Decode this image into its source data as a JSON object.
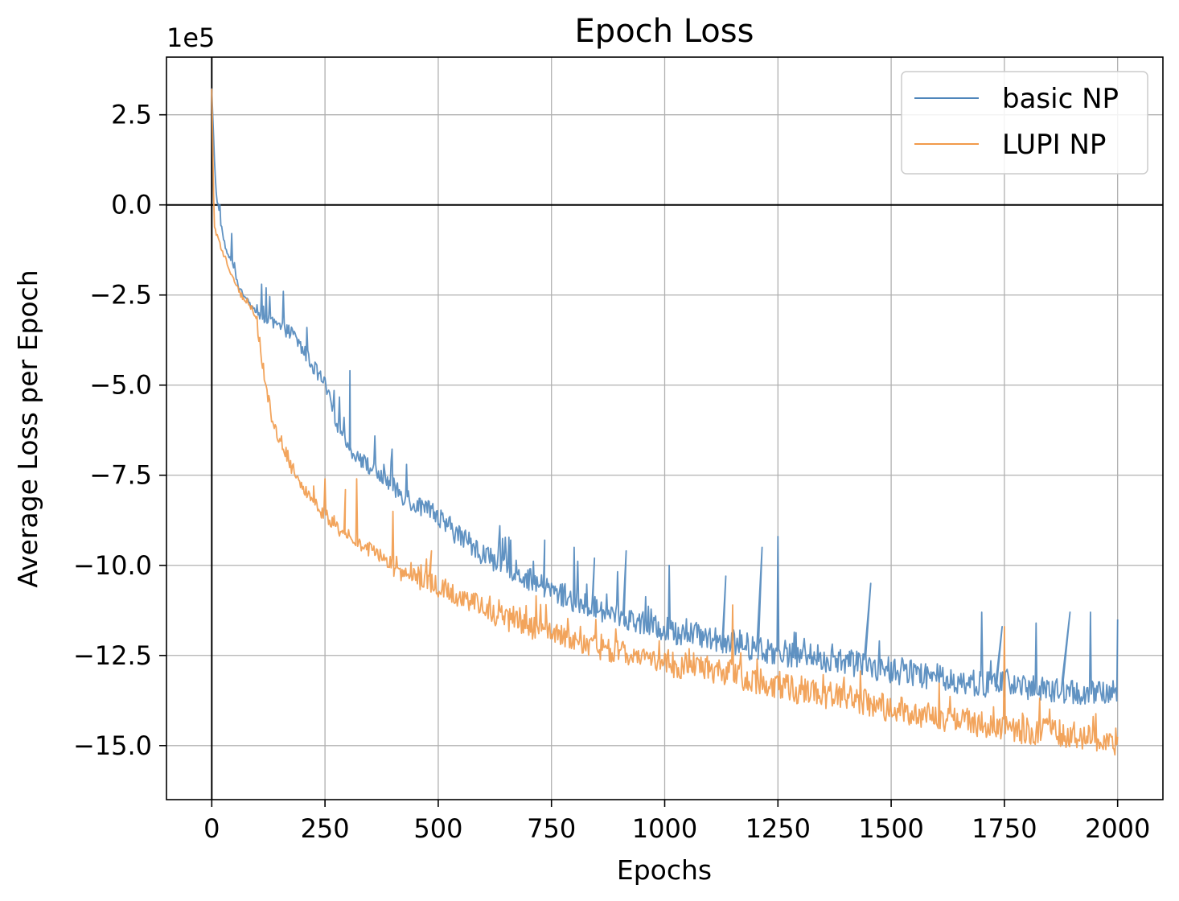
{
  "chart_data": {
    "type": "line",
    "title": "Epoch Loss",
    "xlabel": "Epochs",
    "ylabel": "Average Loss per Epoch",
    "y_offset_label": "1e5",
    "xlim": [
      -100,
      2100
    ],
    "ylim": [
      -16.5,
      4.1
    ],
    "x_ticks": [
      0,
      250,
      500,
      750,
      1000,
      1250,
      1500,
      1750,
      2000
    ],
    "x_tick_labels": [
      "0",
      "250",
      "500",
      "750",
      "1000",
      "1250",
      "1500",
      "1750",
      "2000"
    ],
    "y_ticks": [
      2.5,
      0.0,
      -2.5,
      -5.0,
      -7.5,
      -10.0,
      -12.5,
      -15.0
    ],
    "y_tick_labels": [
      "2.5",
      "0.0",
      "−2.5",
      "−5.0",
      "−7.5",
      "−10.0",
      "−12.5",
      "−15.0"
    ],
    "grid": true,
    "reference_lines": {
      "x": 0,
      "y": 0
    },
    "legend_position": "top-right",
    "series": [
      {
        "name": "basic NP",
        "color": "#4f86bb",
        "x": [
          0,
          5,
          10,
          20,
          30,
          40,
          50,
          60,
          80,
          100,
          120,
          150,
          180,
          200,
          225,
          250,
          275,
          300,
          350,
          400,
          450,
          500,
          550,
          600,
          650,
          700,
          750,
          800,
          850,
          900,
          950,
          1000,
          1050,
          1100,
          1150,
          1200,
          1250,
          1300,
          1350,
          1400,
          1450,
          1500,
          1550,
          1600,
          1650,
          1700,
          1750,
          1800,
          1850,
          1900,
          1950,
          2000
        ],
        "values": [
          3.2,
          1.5,
          0.3,
          -0.5,
          -1.2,
          -1.5,
          -1.8,
          -2.3,
          -2.7,
          -3.0,
          -3.2,
          -3.4,
          -3.6,
          -4.0,
          -4.5,
          -5.0,
          -6.0,
          -6.7,
          -7.3,
          -7.8,
          -8.3,
          -8.7,
          -9.2,
          -9.7,
          -10.0,
          -10.4,
          -10.7,
          -11.0,
          -11.2,
          -11.4,
          -11.6,
          -11.8,
          -11.9,
          -12.0,
          -12.1,
          -12.3,
          -12.4,
          -12.5,
          -12.6,
          -12.7,
          -12.8,
          -12.9,
          -13.0,
          -13.1,
          -13.2,
          -13.3,
          -13.3,
          -13.4,
          -13.5,
          -13.5,
          -13.6,
          -13.5
        ],
        "spikes": [
          [
            110,
            -2.2
          ],
          [
            120,
            -2.3
          ],
          [
            210,
            -3.4
          ],
          [
            305,
            -4.6
          ],
          [
            380,
            -7.2
          ],
          [
            430,
            -7.2
          ],
          [
            660,
            -9.3
          ],
          [
            735,
            -9.3
          ],
          [
            800,
            -9.5
          ],
          [
            845,
            -9.8
          ],
          [
            915,
            -9.6
          ],
          [
            1010,
            -10.0
          ],
          [
            1135,
            -10.3
          ],
          [
            1215,
            -9.5
          ],
          [
            1250,
            -9.2
          ],
          [
            1455,
            -10.5
          ],
          [
            1700,
            -11.3
          ],
          [
            1745,
            -11.7
          ],
          [
            1820,
            -11.6
          ],
          [
            1895,
            -11.3
          ],
          [
            1940,
            -11.3
          ],
          [
            2000,
            -11.5
          ]
        ]
      },
      {
        "name": "LUPI NP",
        "color": "#f19a4a",
        "x": [
          0,
          5,
          10,
          20,
          30,
          40,
          50,
          60,
          70,
          80,
          90,
          100,
          110,
          120,
          130,
          150,
          175,
          200,
          250,
          300,
          350,
          400,
          450,
          500,
          550,
          600,
          650,
          700,
          750,
          800,
          850,
          900,
          950,
          1000,
          1050,
          1100,
          1150,
          1200,
          1250,
          1300,
          1350,
          1400,
          1450,
          1500,
          1550,
          1600,
          1650,
          1700,
          1750,
          1800,
          1850,
          1900,
          1950,
          2000
        ],
        "values": [
          3.3,
          -0.5,
          -0.8,
          -1.2,
          -1.5,
          -1.8,
          -2.1,
          -2.4,
          -2.6,
          -2.7,
          -2.9,
          -3.3,
          -4.2,
          -5.0,
          -5.8,
          -6.5,
          -7.2,
          -7.8,
          -8.6,
          -9.2,
          -9.6,
          -10.0,
          -10.3,
          -10.6,
          -10.9,
          -11.2,
          -11.5,
          -11.7,
          -11.9,
          -12.1,
          -12.3,
          -12.4,
          -12.6,
          -12.7,
          -12.8,
          -12.9,
          -13.0,
          -13.2,
          -13.3,
          -13.5,
          -13.6,
          -13.7,
          -13.8,
          -14.0,
          -14.1,
          -14.2,
          -14.3,
          -14.4,
          -14.5,
          -14.6,
          -14.6,
          -14.7,
          -14.8,
          -14.9
        ],
        "spikes": [
          [
            225,
            -7.8
          ],
          [
            250,
            -7.6
          ],
          [
            295,
            -7.9
          ],
          [
            320,
            -7.6
          ],
          [
            400,
            -8.5
          ],
          [
            485,
            -9.6
          ],
          [
            1150,
            -11.1
          ],
          [
            1750,
            -11.7
          ]
        ]
      }
    ]
  }
}
